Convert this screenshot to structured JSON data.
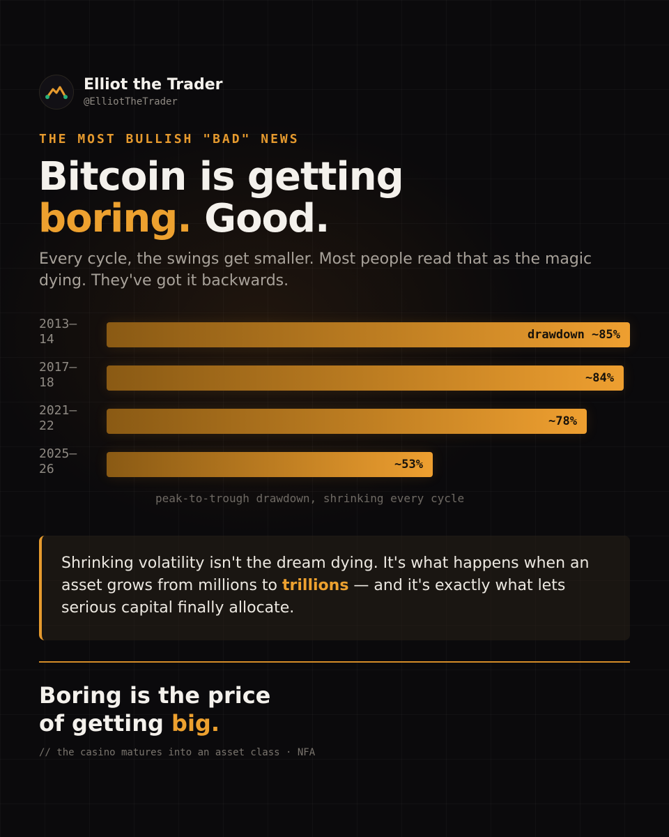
{
  "brand": {
    "name": "Elliot the Trader",
    "handle": "@ElliotTheTrader",
    "logo_icon": "wave-peak-logo-icon"
  },
  "kicker": "THE MOST BULLISH \"BAD\" NEWS",
  "headline": {
    "line1": "Bitcoin is getting",
    "accent": "boring.",
    "rest": " Good."
  },
  "subhead": "Every cycle, the swings get smaller. Most people read that as the magic dying. They've got it backwards.",
  "chart_data": {
    "type": "bar",
    "orientation": "horizontal",
    "categories": [
      "2013—\n14",
      "2017—\n18",
      "2021—\n22",
      "2025—\n26"
    ],
    "values": [
      85,
      84,
      78,
      53
    ],
    "value_labels": [
      "drawdown ~85%",
      "~84%",
      "~78%",
      "~53%"
    ],
    "caption": "peak-to-trough drawdown, shrinking every cycle",
    "xlim": [
      0,
      85
    ],
    "grid": false,
    "legend": "none"
  },
  "quote": {
    "before": "Shrinking volatility isn't the dream dying. It's what happens when an asset grows from millions to ",
    "highlight": "trillions",
    "after": " — and it's exactly what lets serious capital finally allocate."
  },
  "closing": {
    "line1": "Boring is the price",
    "line2_prefix": "of getting ",
    "line2_accent": "big."
  },
  "footnote": "// the casino matures into an asset class · NFA",
  "colors": {
    "accent": "#eda12f",
    "background": "#0b0a0c",
    "text": "#f4f1ec",
    "muted": "#a8a29a"
  }
}
